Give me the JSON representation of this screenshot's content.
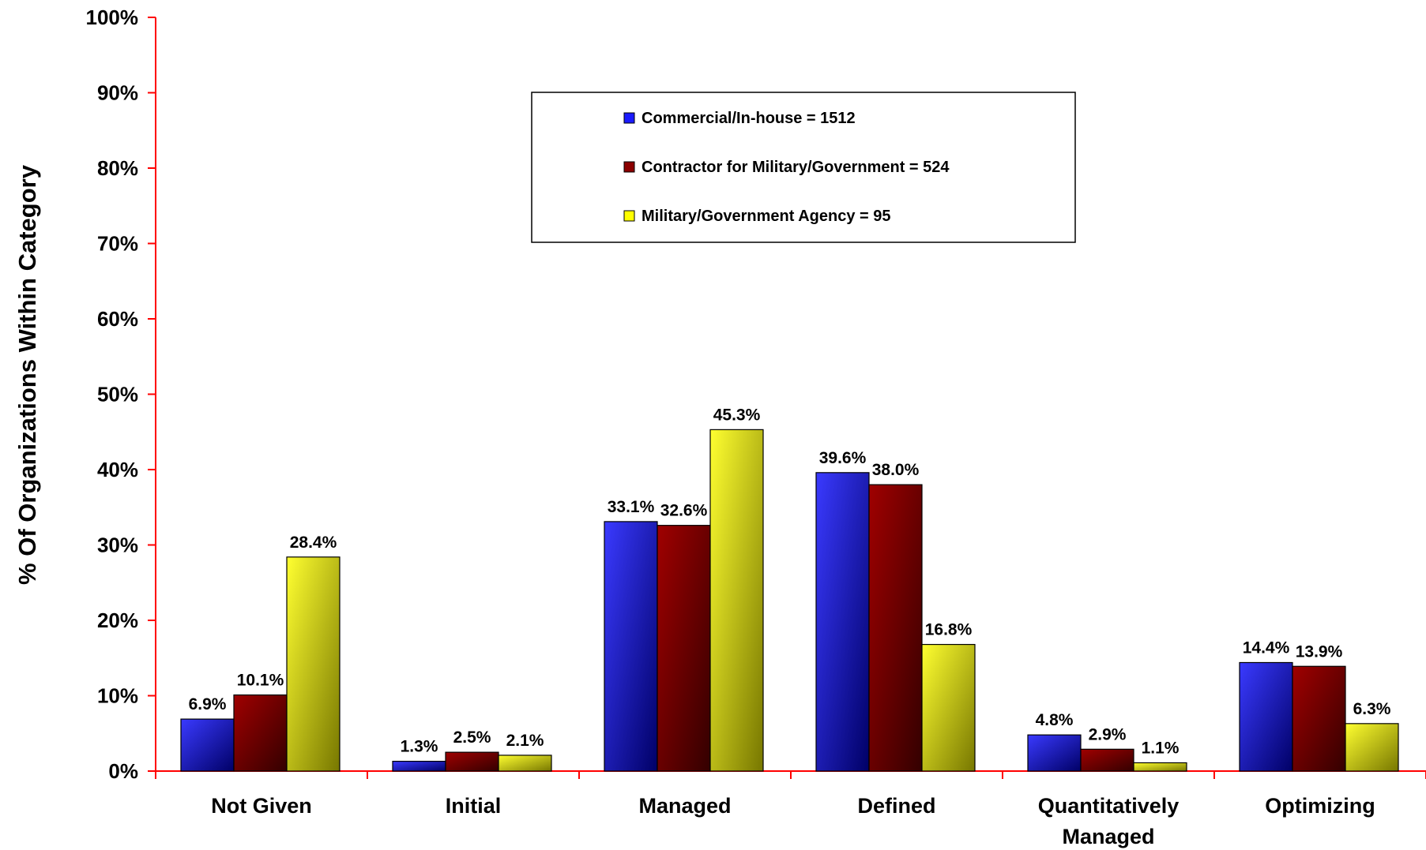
{
  "chart_data": {
    "type": "bar",
    "title": "",
    "xlabel": "",
    "ylabel": "% Of Organizations Within Category",
    "ylim": [
      0,
      100
    ],
    "yticks": [
      "0%",
      "10%",
      "20%",
      "30%",
      "40%",
      "50%",
      "60%",
      "70%",
      "80%",
      "90%",
      "100%"
    ],
    "grid": false,
    "legend_position": "top-center",
    "categories": [
      [
        "Not Given"
      ],
      [
        "Initial"
      ],
      [
        "Managed"
      ],
      [
        "Defined"
      ],
      [
        "Quantitatively",
        "Managed"
      ],
      [
        "Optimizing"
      ]
    ],
    "series": [
      {
        "name": "Commercial/In-house = 1512",
        "color": "#1a1aff",
        "values": [
          6.9,
          1.3,
          33.1,
          39.6,
          4.8,
          14.4
        ],
        "labels": [
          "6.9%",
          "1.3%",
          "33.1%",
          "39.6%",
          "4.8%",
          "14.4%"
        ]
      },
      {
        "name": "Contractor for Military/Government = 524",
        "color": "#8b0000",
        "values": [
          10.1,
          2.5,
          32.6,
          38.0,
          2.9,
          13.9
        ],
        "labels": [
          "10.1%",
          "2.5%",
          "32.6%",
          "38.0%",
          "2.9%",
          "13.9%"
        ]
      },
      {
        "name": "Military/Government Agency = 95",
        "color": "#ffff00",
        "values": [
          28.4,
          2.1,
          45.3,
          16.8,
          1.1,
          6.3
        ],
        "labels": [
          "28.4%",
          "2.1%",
          "45.3%",
          "16.8%",
          "1.1%",
          "6.3%"
        ]
      }
    ],
    "axis_color": "#ff0000"
  }
}
